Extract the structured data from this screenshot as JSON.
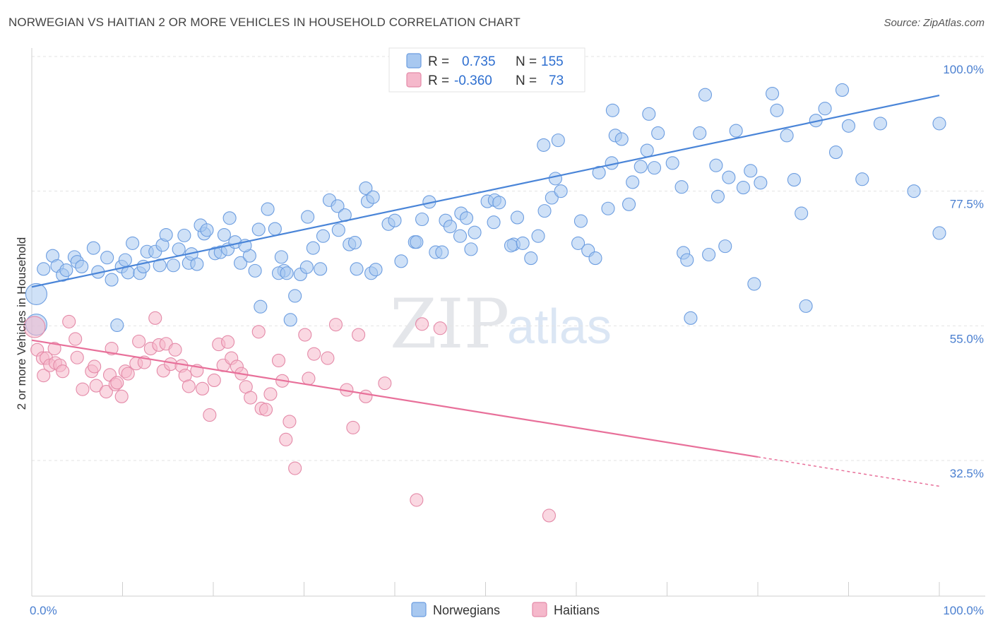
{
  "title": "NORWEGIAN VS HAITIAN 2 OR MORE VEHICLES IN HOUSEHOLD CORRELATION CHART",
  "source": "Source: ZipAtlas.com",
  "watermark": {
    "zip": "ZIP",
    "atlas": "atlas"
  },
  "legend_top": {
    "rows": [
      {
        "r_label": "R =",
        "r_value": "0.735",
        "n_label": "N =",
        "n_value": "155",
        "color": "#a8c8f0"
      },
      {
        "r_label": "R =",
        "r_value": "-0.360",
        "n_label": "N =",
        "n_value": "73",
        "color": "#f5b8cb"
      }
    ]
  },
  "legend_bottom": [
    {
      "label": "Norwegians",
      "color": "#a8c8f0"
    },
    {
      "label": "Haitians",
      "color": "#f5b8cb"
    }
  ],
  "chart_data": {
    "type": "scatter",
    "xlabel": "",
    "ylabel": "2 or more Vehicles in Household",
    "xlim": [
      0,
      100
    ],
    "ylim": [
      10,
      101
    ],
    "x_tick_labels": [
      "0.0%",
      "100.0%"
    ],
    "y_ticks": [
      32.5,
      55.0,
      77.5,
      100.0
    ],
    "y_tick_labels": [
      "32.5%",
      "55.0%",
      "77.5%",
      "100.0%"
    ],
    "grid": true,
    "legend_position": "top-center",
    "colors": {
      "norwegians": "#4a85d8",
      "haitians": "#e8709a",
      "norwegians_fill": "#a8c8f0",
      "haitians_fill": "#f5b8cb"
    },
    "series": [
      {
        "name": "Norwegians",
        "trendline": {
          "x": [
            0,
            100
          ],
          "y": [
            61.5,
            93.5
          ]
        },
        "points": [
          [
            0.5,
            60.3,
            "L"
          ],
          [
            0.5,
            55.2,
            "L"
          ],
          [
            1.3,
            64.5
          ],
          [
            2.3,
            66.7
          ],
          [
            2.8,
            65.0
          ],
          [
            3.4,
            63.5
          ],
          [
            3.8,
            64.3
          ],
          [
            4.7,
            66.5
          ],
          [
            5.0,
            65.7
          ],
          [
            5.5,
            64.9
          ],
          [
            6.8,
            68.0
          ],
          [
            7.3,
            64.0
          ],
          [
            8.3,
            66.4
          ],
          [
            8.8,
            62.7
          ],
          [
            9.4,
            55.1
          ],
          [
            9.9,
            64.9
          ],
          [
            10.3,
            66.0
          ],
          [
            10.6,
            63.9
          ],
          [
            11.1,
            68.8
          ],
          [
            11.9,
            63.8
          ],
          [
            12.3,
            64.9
          ],
          [
            12.7,
            67.4
          ],
          [
            13.6,
            67.4
          ],
          [
            14.1,
            65.1
          ],
          [
            14.4,
            68.5
          ],
          [
            14.8,
            70.2
          ],
          [
            15.6,
            65.1
          ],
          [
            16.2,
            67.8
          ],
          [
            16.8,
            70.1
          ],
          [
            17.3,
            65.5
          ],
          [
            17.6,
            67.0
          ],
          [
            18.2,
            65.3
          ],
          [
            19.0,
            70.4
          ],
          [
            18.6,
            71.8
          ],
          [
            19.3,
            71.0
          ],
          [
            20.2,
            67.1
          ],
          [
            20.8,
            67.3
          ],
          [
            21.6,
            67.8
          ],
          [
            21.2,
            70.2
          ],
          [
            22.4,
            69.0
          ],
          [
            21.8,
            73.0
          ],
          [
            23.0,
            65.5
          ],
          [
            24.0,
            66.7
          ],
          [
            24.6,
            64.2
          ],
          [
            23.5,
            68.4
          ],
          [
            25.0,
            71.1
          ],
          [
            26.8,
            71.2
          ],
          [
            26.0,
            74.5
          ],
          [
            25.2,
            58.2
          ],
          [
            27.8,
            64.2
          ],
          [
            27.5,
            66.5
          ],
          [
            27.2,
            63.8
          ],
          [
            28.1,
            63.8
          ],
          [
            29.6,
            63.6
          ],
          [
            29.0,
            60.0
          ],
          [
            28.5,
            56.0
          ],
          [
            30.3,
            64.8
          ],
          [
            30.4,
            73.2
          ],
          [
            31.8,
            64.5
          ],
          [
            31.0,
            68.0
          ],
          [
            32.1,
            70.0
          ],
          [
            32.8,
            76.0
          ],
          [
            33.7,
            75.0
          ],
          [
            33.8,
            71.0
          ],
          [
            34.5,
            73.5
          ],
          [
            35.0,
            68.6
          ],
          [
            35.6,
            68.9
          ],
          [
            35.8,
            64.5
          ],
          [
            36.8,
            78.0
          ],
          [
            37.0,
            75.8
          ],
          [
            37.4,
            63.8
          ],
          [
            37.9,
            64.4
          ],
          [
            37.6,
            76.5
          ],
          [
            39.3,
            72.0
          ],
          [
            40.7,
            65.8
          ],
          [
            40.0,
            72.6
          ],
          [
            42.2,
            69.0
          ],
          [
            42.4,
            69.0
          ],
          [
            43.0,
            72.8
          ],
          [
            43.8,
            75.7
          ],
          [
            44.5,
            67.3
          ],
          [
            45.2,
            67.3
          ],
          [
            45.6,
            72.6
          ],
          [
            46.1,
            71.6
          ],
          [
            47.2,
            70.0
          ],
          [
            47.3,
            73.8
          ],
          [
            47.9,
            73.0
          ],
          [
            48.4,
            67.8
          ],
          [
            48.8,
            70.6
          ],
          [
            50.2,
            75.8
          ],
          [
            51.0,
            76.0
          ],
          [
            50.9,
            72.3
          ],
          [
            51.5,
            75.6
          ],
          [
            53.1,
            68.6
          ],
          [
            53.5,
            73.1
          ],
          [
            52.8,
            68.4
          ],
          [
            54.1,
            68.8
          ],
          [
            55.0,
            66.3
          ],
          [
            55.8,
            70.0
          ],
          [
            56.5,
            74.2
          ],
          [
            57.3,
            76.4
          ],
          [
            57.7,
            79.6
          ],
          [
            56.4,
            85.2
          ],
          [
            58.0,
            86.0
          ],
          [
            58.3,
            77.5
          ],
          [
            60.2,
            68.8
          ],
          [
            60.5,
            72.5
          ],
          [
            61.3,
            67.6
          ],
          [
            62.1,
            66.3
          ],
          [
            62.5,
            80.6
          ],
          [
            63.5,
            74.6
          ],
          [
            63.9,
            82.2
          ],
          [
            64.3,
            86.8
          ],
          [
            65.0,
            86.2
          ],
          [
            64.0,
            91.0
          ],
          [
            65.8,
            75.3
          ],
          [
            66.2,
            79.0
          ],
          [
            67.1,
            81.6
          ],
          [
            67.8,
            84.3
          ],
          [
            68.0,
            90.4
          ],
          [
            69.0,
            87.2
          ],
          [
            68.6,
            81.4
          ],
          [
            70.6,
            82.2
          ],
          [
            71.8,
            67.2
          ],
          [
            71.6,
            78.2
          ],
          [
            72.2,
            66.0
          ],
          [
            72.6,
            56.3
          ],
          [
            73.6,
            87.2
          ],
          [
            74.2,
            93.6
          ],
          [
            74.6,
            66.9
          ],
          [
            75.4,
            81.8
          ],
          [
            75.6,
            76.6
          ],
          [
            76.4,
            68.3
          ],
          [
            76.8,
            79.8
          ],
          [
            77.6,
            87.6
          ],
          [
            78.4,
            78.1
          ],
          [
            79.2,
            80.9
          ],
          [
            79.6,
            62.0
          ],
          [
            80.3,
            78.9
          ],
          [
            81.6,
            93.8
          ],
          [
            82.1,
            91.0
          ],
          [
            83.2,
            86.8
          ],
          [
            84.0,
            79.4
          ],
          [
            84.8,
            73.8
          ],
          [
            85.3,
            58.3
          ],
          [
            86.4,
            89.3
          ],
          [
            87.4,
            91.3
          ],
          [
            88.6,
            84.0
          ],
          [
            89.3,
            94.4
          ],
          [
            90.0,
            88.4
          ],
          [
            91.5,
            79.5
          ],
          [
            93.5,
            88.8
          ],
          [
            97.2,
            77.5
          ],
          [
            100.0,
            88.8
          ],
          [
            103.0,
            70.5
          ]
        ]
      },
      {
        "name": "Haitians",
        "trendline": {
          "x": [
            0,
            80
          ],
          "y": [
            52.6,
            33.1
          ]
        },
        "trendline_dashed": {
          "x": [
            80,
            100
          ],
          "y": [
            33.1,
            28.2
          ]
        },
        "points": [
          [
            0.3,
            54.8,
            "L"
          ],
          [
            0.6,
            51.0
          ],
          [
            1.2,
            49.6
          ],
          [
            1.6,
            49.6
          ],
          [
            1.3,
            46.7
          ],
          [
            2.0,
            48.4
          ],
          [
            2.5,
            51.2
          ],
          [
            2.6,
            48.8
          ],
          [
            3.1,
            48.4
          ],
          [
            3.4,
            47.4
          ],
          [
            4.1,
            55.7
          ],
          [
            4.8,
            52.8
          ],
          [
            5.0,
            49.7
          ],
          [
            5.6,
            44.4
          ],
          [
            6.6,
            47.4
          ],
          [
            6.9,
            48.2
          ],
          [
            7.1,
            45.0
          ],
          [
            8.2,
            44.0
          ],
          [
            8.6,
            46.8
          ],
          [
            8.8,
            51.2
          ],
          [
            9.2,
            45.2
          ],
          [
            9.4,
            45.5
          ],
          [
            9.9,
            43.2
          ],
          [
            10.3,
            47.4
          ],
          [
            10.6,
            47.0
          ],
          [
            11.5,
            48.7
          ],
          [
            11.8,
            52.4
          ],
          [
            12.4,
            48.9
          ],
          [
            13.1,
            51.2
          ],
          [
            13.6,
            56.3
          ],
          [
            14.0,
            51.8
          ],
          [
            14.5,
            47.5
          ],
          [
            14.8,
            52.0
          ],
          [
            15.3,
            48.6
          ],
          [
            15.8,
            51.0
          ],
          [
            16.5,
            48.3
          ],
          [
            16.9,
            46.7
          ],
          [
            17.3,
            44.9
          ],
          [
            18.2,
            47.5
          ],
          [
            18.8,
            44.5
          ],
          [
            19.6,
            40.1
          ],
          [
            20.1,
            45.9
          ],
          [
            20.6,
            51.9
          ],
          [
            21.1,
            48.4
          ],
          [
            21.6,
            52.3
          ],
          [
            22.0,
            49.6
          ],
          [
            22.6,
            48.2
          ],
          [
            23.1,
            47.0
          ],
          [
            23.6,
            44.8
          ],
          [
            24.1,
            43.0
          ],
          [
            25.0,
            54.0
          ],
          [
            25.3,
            41.2
          ],
          [
            25.8,
            41.0
          ],
          [
            26.3,
            43.6
          ],
          [
            27.2,
            49.2
          ],
          [
            27.6,
            45.8
          ],
          [
            28.0,
            36.0
          ],
          [
            28.4,
            39.0
          ],
          [
            29.0,
            31.2
          ],
          [
            30.1,
            53.5
          ],
          [
            30.5,
            46.2
          ],
          [
            31.1,
            50.3
          ],
          [
            32.6,
            49.6
          ],
          [
            33.5,
            55.2
          ],
          [
            34.7,
            44.3
          ],
          [
            35.4,
            38.0
          ],
          [
            36.0,
            53.5
          ],
          [
            36.8,
            43.2
          ],
          [
            38.9,
            45.4
          ],
          [
            42.4,
            25.9
          ],
          [
            43.0,
            55.3
          ],
          [
            45.0,
            54.6
          ],
          [
            57.0,
            23.3
          ]
        ]
      }
    ]
  }
}
